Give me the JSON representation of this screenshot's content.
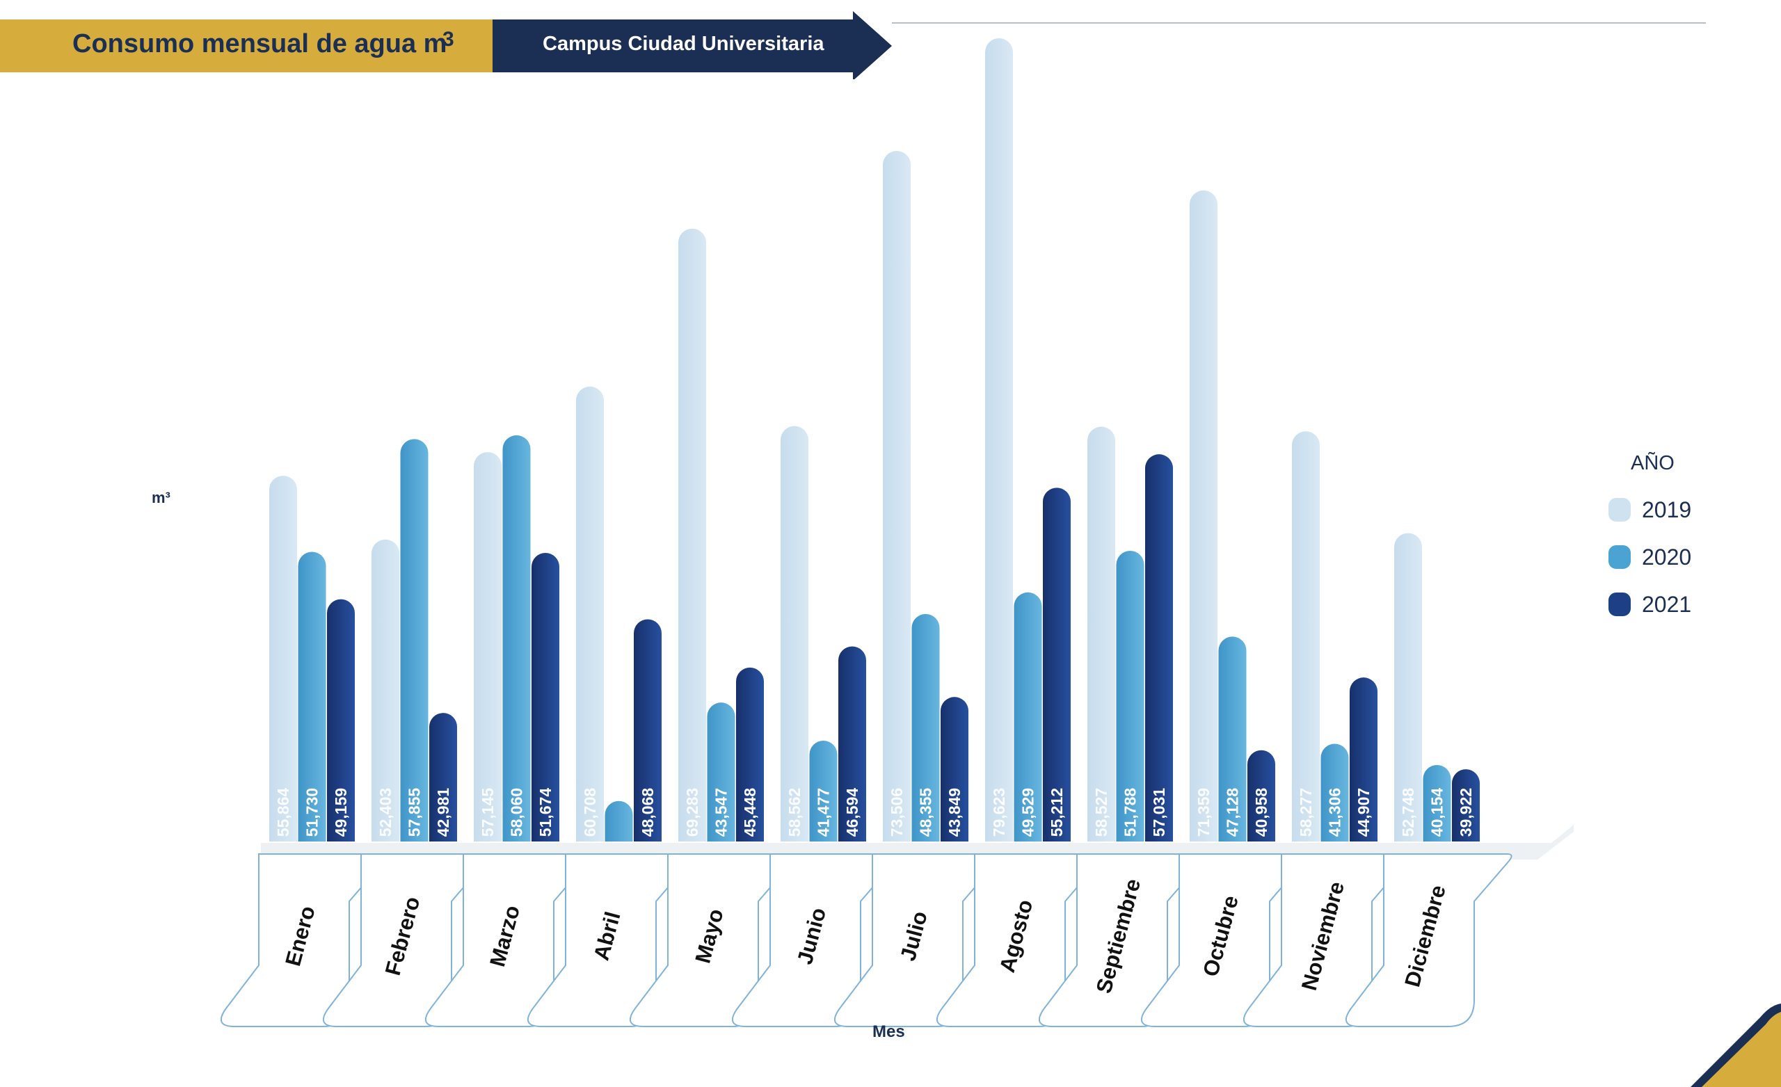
{
  "header": {
    "title": "Consumo mensual de agua m",
    "title_superscript": "3",
    "subtitle": "Campus Ciudad Universitaria"
  },
  "colors": {
    "gold": "#d6ad3d",
    "navy": "#1b2f55",
    "series_2019": "#cfe2f0",
    "series_2020": "#4aa3d3",
    "series_2021": "#1c3f86"
  },
  "chart_data": {
    "type": "bar",
    "title": "Consumo mensual de agua m3",
    "subtitle": "Campus Ciudad Universitaria",
    "xlabel": "Mes",
    "ylabel": "m³",
    "legend_title": "AÑO",
    "legend_position": "right",
    "grid": false,
    "ylim": [
      0,
      80000
    ],
    "categories": [
      "Enero",
      "Febrero",
      "Marzo",
      "Abril",
      "Mayo",
      "Junio",
      "Julio",
      "Agosto",
      "Septiembre",
      "Octubre",
      "Noviembre",
      "Diciembre"
    ],
    "series": [
      {
        "name": "2019",
        "values": [
          55864,
          52403,
          57145,
          60708,
          69283,
          58562,
          73506,
          79623,
          58527,
          71359,
          58277,
          52748
        ],
        "labels": [
          "55,864",
          "52,403",
          "57,145",
          "60,708",
          "69,283",
          "58,562",
          "73,506",
          "79,623",
          "58,527",
          "71,359",
          "58,277",
          "52,748"
        ]
      },
      {
        "name": "2020",
        "values": [
          51730,
          57855,
          58060,
          38200,
          43547,
          41477,
          48355,
          49529,
          51788,
          47128,
          41306,
          40154
        ],
        "labels": [
          "51,730",
          "57,855",
          "58,060",
          "",
          "43,547",
          "41,477",
          "48,355",
          "49,529",
          "51,788",
          "47,128",
          "41,306",
          "40,154"
        ]
      },
      {
        "name": "2021",
        "values": [
          49159,
          42981,
          51674,
          48068,
          45448,
          46594,
          43849,
          55212,
          57031,
          40958,
          44907,
          39922
        ],
        "labels": [
          "49,159",
          "42,981",
          "51,674",
          "48,068",
          "45,448",
          "46,594",
          "43,849",
          "55,212",
          "57,031",
          "40,958",
          "44,907",
          "39,922"
        ]
      }
    ]
  }
}
